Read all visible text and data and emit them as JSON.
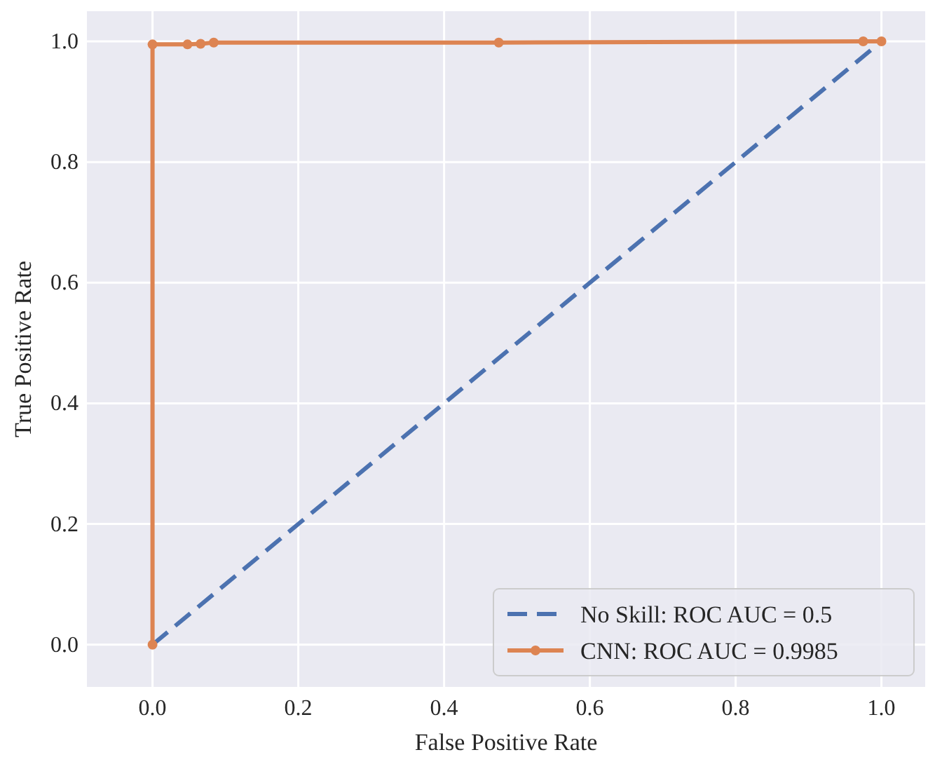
{
  "chart_data": {
    "type": "line",
    "xlabel": "False Positive Rate",
    "ylabel": "True Positive Rate",
    "xlim": [
      -0.09,
      1.06
    ],
    "ylim": [
      -0.07,
      1.05
    ],
    "xticks": [
      {
        "value": 0,
        "label": "0.0"
      },
      {
        "value": 0.2,
        "label": "0.2"
      },
      {
        "value": 0.4,
        "label": "0.4"
      },
      {
        "value": 0.6,
        "label": "0.6"
      },
      {
        "value": 0.8,
        "label": "0.8"
      },
      {
        "value": 1,
        "label": "1.0"
      }
    ],
    "yticks": [
      {
        "value": 0,
        "label": "0.0"
      },
      {
        "value": 0.2,
        "label": "0.2"
      },
      {
        "value": 0.4,
        "label": "0.4"
      },
      {
        "value": 0.6,
        "label": "0.6"
      },
      {
        "value": 0.8,
        "label": "0.8"
      },
      {
        "value": 1,
        "label": "1.0"
      }
    ],
    "grid": true,
    "legend": "bottom right",
    "series": [
      {
        "name": "No Skill: ROC AUC = 0.5",
        "color": "#4c72b0",
        "line_style": "dashed",
        "marker": "none",
        "x": [
          0,
          1
        ],
        "values": [
          0,
          1
        ]
      },
      {
        "name": "CNN: ROC AUC = 0.9985",
        "color": "#dd8452",
        "line_style": "solid",
        "marker": "circle",
        "x": [
          0,
          0,
          0.048,
          0.066,
          0.084,
          0.475,
          0.975,
          1
        ],
        "values": [
          0,
          0.995,
          0.995,
          0.996,
          0.998,
          0.998,
          1,
          1
        ]
      }
    ]
  }
}
